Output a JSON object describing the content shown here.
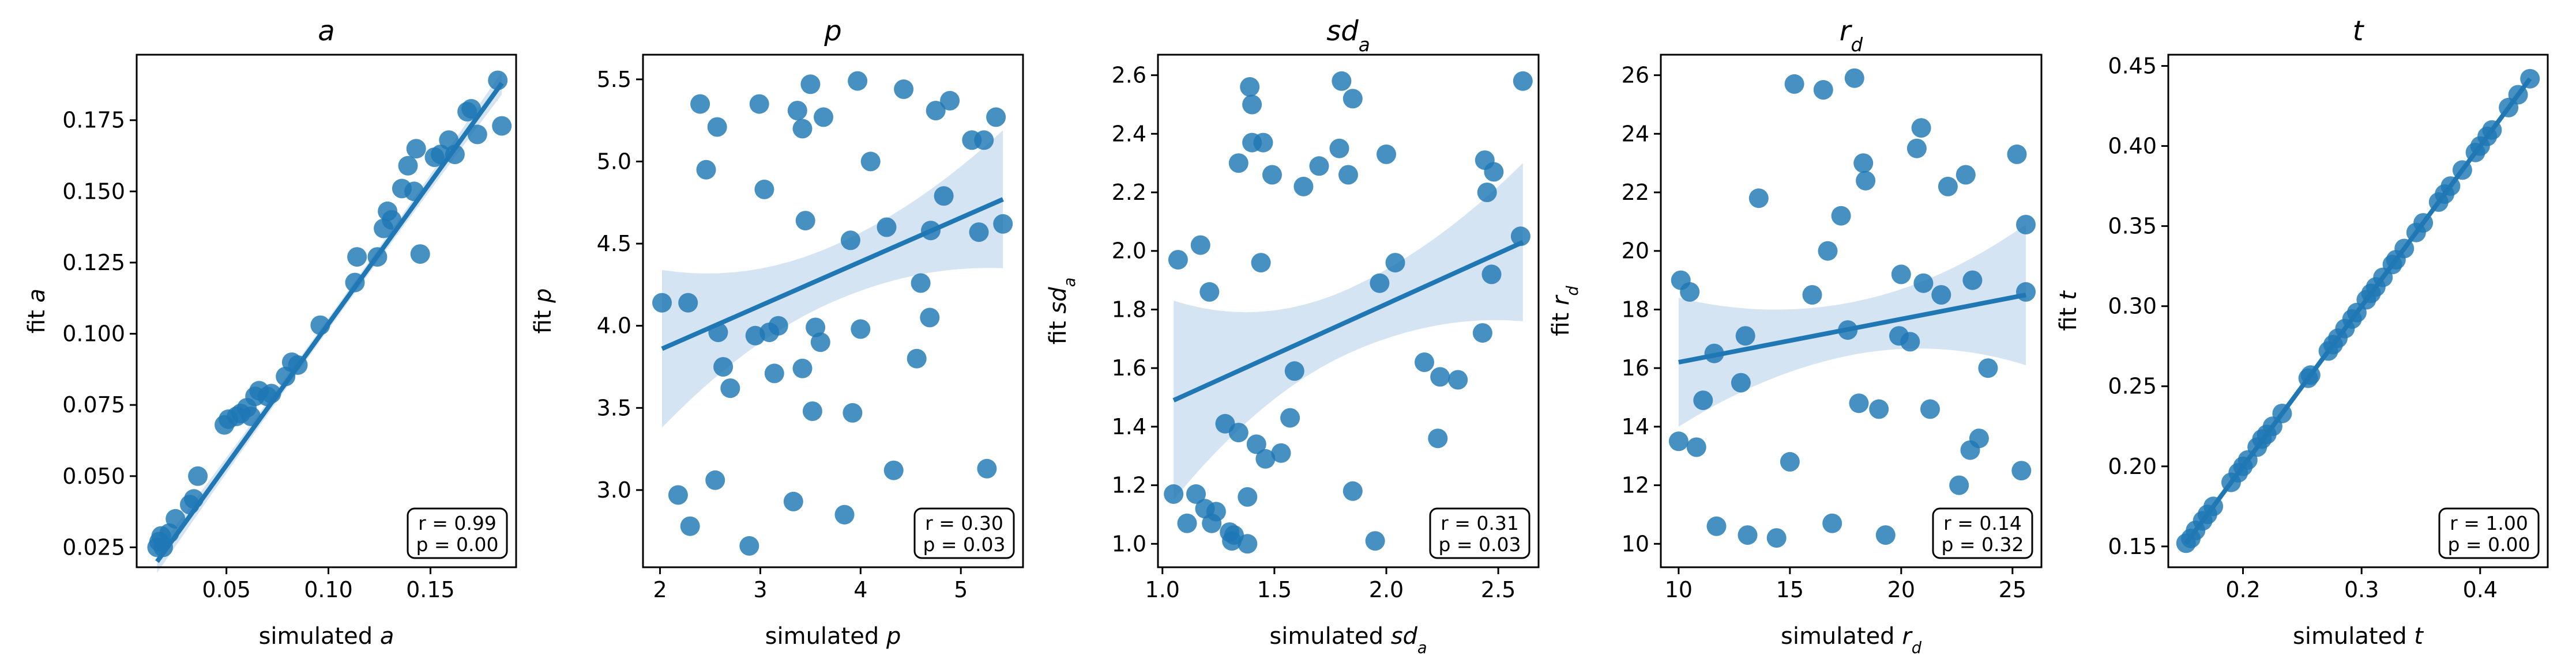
{
  "colors": {
    "point": "#1f77b4",
    "band": "#c6dbef",
    "line": "#1f77b4",
    "axis": "#000000"
  },
  "chart_data": [
    {
      "type": "scatter",
      "title": "a",
      "title_sub": "",
      "xlabel": "simulated ",
      "xlabel_sym": "a",
      "xlabel_sub": "",
      "ylabel": "fit ",
      "ylabel_sym": "a",
      "ylabel_sub": "",
      "xlim": [
        0.006,
        0.192
      ],
      "ylim": [
        0.018,
        0.198
      ],
      "xticks": [
        0.05,
        0.1,
        0.15
      ],
      "xtick_labels": [
        "0.05",
        "0.10",
        "0.15"
      ],
      "yticks": [
        0.025,
        0.05,
        0.075,
        0.1,
        0.125,
        0.15,
        0.175
      ],
      "ytick_labels": [
        "0.025",
        "0.050",
        "0.075",
        "0.100",
        "0.125",
        "0.150",
        "0.175"
      ],
      "points": [
        [
          0.016,
          0.025
        ],
        [
          0.017,
          0.027
        ],
        [
          0.018,
          0.029
        ],
        [
          0.019,
          0.025
        ],
        [
          0.022,
          0.03
        ],
        [
          0.025,
          0.035
        ],
        [
          0.032,
          0.04
        ],
        [
          0.034,
          0.042
        ],
        [
          0.036,
          0.05
        ],
        [
          0.049,
          0.068
        ],
        [
          0.051,
          0.07
        ],
        [
          0.055,
          0.071
        ],
        [
          0.057,
          0.072
        ],
        [
          0.06,
          0.074
        ],
        [
          0.062,
          0.071
        ],
        [
          0.064,
          0.078
        ],
        [
          0.066,
          0.08
        ],
        [
          0.07,
          0.078
        ],
        [
          0.072,
          0.079
        ],
        [
          0.079,
          0.085
        ],
        [
          0.082,
          0.09
        ],
        [
          0.085,
          0.089
        ],
        [
          0.096,
          0.103
        ],
        [
          0.113,
          0.118
        ],
        [
          0.114,
          0.127
        ],
        [
          0.124,
          0.127
        ],
        [
          0.127,
          0.137
        ],
        [
          0.129,
          0.143
        ],
        [
          0.131,
          0.14
        ],
        [
          0.136,
          0.151
        ],
        [
          0.139,
          0.159
        ],
        [
          0.142,
          0.15
        ],
        [
          0.143,
          0.165
        ],
        [
          0.145,
          0.128
        ],
        [
          0.152,
          0.162
        ],
        [
          0.155,
          0.163
        ],
        [
          0.159,
          0.168
        ],
        [
          0.162,
          0.163
        ],
        [
          0.168,
          0.178
        ],
        [
          0.17,
          0.179
        ],
        [
          0.173,
          0.17
        ],
        [
          0.183,
          0.189
        ],
        [
          0.185,
          0.173
        ]
      ],
      "fit": {
        "x": [
          0.016,
          0.185
        ],
        "y": [
          0.02,
          0.188
        ]
      },
      "band_halfwidth": {
        "left": 0.004,
        "mid": 0.002,
        "right": 0.004
      },
      "stats": {
        "r": "r = 0.99",
        "p": "p = 0.00"
      }
    },
    {
      "type": "scatter",
      "title": "p",
      "title_sub": "",
      "xlabel": "simulated ",
      "xlabel_sym": "p",
      "xlabel_sub": "",
      "ylabel": "fit ",
      "ylabel_sym": "p",
      "ylabel_sub": "",
      "xlim": [
        1.83,
        5.62
      ],
      "ylim": [
        2.53,
        5.65
      ],
      "xticks": [
        2,
        3,
        4,
        5
      ],
      "xtick_labels": [
        "2",
        "3",
        "4",
        "5"
      ],
      "yticks": [
        3.0,
        3.5,
        4.0,
        4.5,
        5.0,
        5.5
      ],
      "ytick_labels": [
        "3.0",
        "3.5",
        "4.0",
        "4.5",
        "5.0",
        "5.5"
      ],
      "points": [
        [
          2.02,
          4.14
        ],
        [
          2.18,
          2.97
        ],
        [
          2.28,
          4.14
        ],
        [
          2.3,
          2.78
        ],
        [
          2.4,
          5.35
        ],
        [
          2.46,
          4.95
        ],
        [
          2.55,
          3.06
        ],
        [
          2.57,
          5.21
        ],
        [
          2.58,
          3.96
        ],
        [
          2.63,
          3.75
        ],
        [
          2.7,
          3.62
        ],
        [
          2.89,
          2.66
        ],
        [
          2.95,
          3.94
        ],
        [
          2.99,
          5.35
        ],
        [
          3.04,
          4.83
        ],
        [
          3.09,
          3.96
        ],
        [
          3.14,
          3.71
        ],
        [
          3.18,
          4.0
        ],
        [
          3.33,
          2.93
        ],
        [
          3.37,
          5.31
        ],
        [
          3.42,
          3.74
        ],
        [
          3.42,
          5.2
        ],
        [
          3.45,
          4.64
        ],
        [
          3.5,
          5.47
        ],
        [
          3.52,
          3.48
        ],
        [
          3.55,
          3.99
        ],
        [
          3.6,
          3.9
        ],
        [
          3.63,
          5.27
        ],
        [
          3.84,
          2.85
        ],
        [
          3.9,
          4.52
        ],
        [
          3.92,
          3.47
        ],
        [
          3.97,
          5.49
        ],
        [
          4.0,
          3.98
        ],
        [
          4.1,
          5.0
        ],
        [
          4.26,
          4.6
        ],
        [
          4.33,
          3.12
        ],
        [
          4.43,
          5.44
        ],
        [
          4.56,
          3.8
        ],
        [
          4.6,
          4.26
        ],
        [
          4.69,
          4.05
        ],
        [
          4.7,
          4.58
        ],
        [
          4.75,
          5.31
        ],
        [
          4.83,
          4.79
        ],
        [
          4.89,
          5.37
        ],
        [
          5.11,
          5.13
        ],
        [
          5.18,
          4.57
        ],
        [
          5.23,
          5.13
        ],
        [
          5.26,
          3.13
        ],
        [
          5.35,
          5.27
        ],
        [
          5.42,
          4.62
        ]
      ],
      "fit": {
        "x": [
          2.02,
          5.42
        ],
        "y": [
          3.86,
          4.77
        ]
      },
      "band_halfwidth": {
        "left": 0.48,
        "mid": 0.17,
        "right": 0.42
      },
      "stats": {
        "r": "r = 0.30",
        "p": "p = 0.03"
      }
    },
    {
      "type": "scatter",
      "title": "sd",
      "title_sub": "a",
      "xlabel": "simulated ",
      "xlabel_sym": "sd",
      "xlabel_sub": "a",
      "ylabel": "fit ",
      "ylabel_sym": "sd",
      "ylabel_sub": "a",
      "xlim": [
        0.98,
        2.68
      ],
      "ylim": [
        0.92,
        2.67
      ],
      "xticks": [
        1.0,
        1.5,
        2.0,
        2.5
      ],
      "xtick_labels": [
        "1.0",
        "1.5",
        "2.0",
        "2.5"
      ],
      "yticks": [
        1.0,
        1.2,
        1.4,
        1.6,
        1.8,
        2.0,
        2.2,
        2.4,
        2.6
      ],
      "ytick_labels": [
        "1.0",
        "1.2",
        "1.4",
        "1.6",
        "1.8",
        "2.0",
        "2.2",
        "2.4",
        "2.6"
      ],
      "points": [
        [
          1.05,
          1.17
        ],
        [
          1.07,
          1.97
        ],
        [
          1.11,
          1.07
        ],
        [
          1.15,
          1.17
        ],
        [
          1.17,
          2.02
        ],
        [
          1.19,
          1.12
        ],
        [
          1.21,
          1.86
        ],
        [
          1.22,
          1.07
        ],
        [
          1.24,
          1.11
        ],
        [
          1.28,
          1.41
        ],
        [
          1.3,
          1.04
        ],
        [
          1.31,
          1.01
        ],
        [
          1.32,
          1.03
        ],
        [
          1.34,
          1.38
        ],
        [
          1.34,
          2.3
        ],
        [
          1.38,
          1.16
        ],
        [
          1.38,
          1.0
        ],
        [
          1.39,
          2.56
        ],
        [
          1.4,
          2.5
        ],
        [
          1.4,
          2.37
        ],
        [
          1.42,
          1.34
        ],
        [
          1.44,
          1.96
        ],
        [
          1.45,
          2.37
        ],
        [
          1.46,
          1.29
        ],
        [
          1.49,
          2.26
        ],
        [
          1.53,
          1.31
        ],
        [
          1.57,
          1.43
        ],
        [
          1.59,
          1.59
        ],
        [
          1.63,
          2.22
        ],
        [
          1.7,
          2.29
        ],
        [
          1.79,
          2.35
        ],
        [
          1.8,
          2.58
        ],
        [
          1.83,
          2.26
        ],
        [
          1.85,
          2.52
        ],
        [
          1.85,
          1.18
        ],
        [
          1.95,
          1.01
        ],
        [
          1.97,
          1.89
        ],
        [
          2.0,
          2.33
        ],
        [
          2.04,
          1.96
        ],
        [
          2.17,
          1.62
        ],
        [
          2.23,
          1.36
        ],
        [
          2.24,
          1.57
        ],
        [
          2.32,
          1.56
        ],
        [
          2.43,
          1.72
        ],
        [
          2.44,
          2.31
        ],
        [
          2.45,
          2.2
        ],
        [
          2.47,
          1.92
        ],
        [
          2.48,
          2.27
        ],
        [
          2.59,
          1.05
        ],
        [
          2.6,
          2.05
        ],
        [
          2.61,
          2.58
        ]
      ],
      "fit": {
        "x": [
          1.05,
          2.61
        ],
        "y": [
          1.49,
          2.03
        ]
      },
      "band_halfwidth": {
        "left": 0.34,
        "mid": 0.11,
        "right": 0.27
      },
      "stats": {
        "r": "r = 0.31",
        "p": "p = 0.03"
      }
    },
    {
      "type": "scatter",
      "title": "r",
      "title_sub": "d",
      "xlabel": "simulated ",
      "xlabel_sym": "r",
      "xlabel_sub": "d",
      "ylabel": "fit ",
      "ylabel_sym": "r",
      "ylabel_sub": "d",
      "xlim": [
        9.2,
        26.3
      ],
      "ylim": [
        9.2,
        26.7
      ],
      "xticks": [
        10,
        15,
        20,
        25
      ],
      "xtick_labels": [
        "10",
        "15",
        "20",
        "25"
      ],
      "yticks": [
        10,
        12,
        14,
        16,
        18,
        20,
        22,
        24,
        26
      ],
      "ytick_labels": [
        "10",
        "12",
        "14",
        "16",
        "18",
        "20",
        "22",
        "24",
        "26"
      ],
      "points": [
        [
          10.0,
          13.5
        ],
        [
          10.1,
          19.0
        ],
        [
          10.5,
          18.6
        ],
        [
          10.8,
          13.3
        ],
        [
          11.1,
          14.9
        ],
        [
          11.6,
          16.5
        ],
        [
          11.7,
          10.6
        ],
        [
          12.8,
          15.5
        ],
        [
          13.0,
          17.1
        ],
        [
          13.1,
          10.3
        ],
        [
          13.6,
          21.8
        ],
        [
          14.4,
          10.2
        ],
        [
          15.0,
          12.8
        ],
        [
          15.2,
          25.7
        ],
        [
          16.0,
          18.5
        ],
        [
          16.5,
          25.5
        ],
        [
          16.7,
          20.0
        ],
        [
          16.9,
          10.7
        ],
        [
          17.3,
          21.2
        ],
        [
          17.6,
          17.3
        ],
        [
          17.9,
          25.9
        ],
        [
          18.1,
          14.8
        ],
        [
          18.3,
          23.0
        ],
        [
          18.4,
          22.4
        ],
        [
          19.0,
          14.6
        ],
        [
          19.3,
          10.3
        ],
        [
          19.9,
          17.1
        ],
        [
          20.0,
          19.2
        ],
        [
          20.4,
          16.9
        ],
        [
          20.7,
          23.5
        ],
        [
          20.9,
          24.2
        ],
        [
          21.0,
          18.9
        ],
        [
          21.3,
          14.6
        ],
        [
          21.8,
          18.5
        ],
        [
          22.1,
          22.2
        ],
        [
          22.9,
          22.6
        ],
        [
          22.6,
          12.0
        ],
        [
          23.1,
          13.2
        ],
        [
          23.2,
          19.0
        ],
        [
          23.5,
          13.6
        ],
        [
          23.9,
          16.0
        ],
        [
          24.1,
          10.5
        ],
        [
          25.2,
          23.3
        ],
        [
          25.4,
          12.5
        ],
        [
          25.6,
          18.6
        ],
        [
          25.6,
          20.9
        ]
      ],
      "fit": {
        "x": [
          10.0,
          25.6
        ],
        "y": [
          16.2,
          18.5
        ]
      },
      "band_halfwidth": {
        "left": 2.2,
        "mid": 0.9,
        "right": 2.4
      },
      "stats": {
        "r": "r = 0.14",
        "p": "p = 0.32"
      }
    },
    {
      "type": "scatter",
      "title": "t",
      "title_sub": "",
      "xlabel": "simulated ",
      "xlabel_sym": "t",
      "xlabel_sub": "",
      "ylabel": "fit ",
      "ylabel_sym": "t",
      "ylabel_sub": "",
      "xlim": [
        0.137,
        0.457
      ],
      "ylim": [
        0.137,
        0.457
      ],
      "xticks": [
        0.2,
        0.3,
        0.4
      ],
      "xtick_labels": [
        "0.2",
        "0.3",
        "0.4"
      ],
      "yticks": [
        0.15,
        0.2,
        0.25,
        0.3,
        0.35,
        0.4,
        0.45
      ],
      "ytick_labels": [
        "0.15",
        "0.20",
        "0.25",
        "0.30",
        "0.35",
        "0.40",
        "0.45"
      ],
      "points": [
        [
          0.152,
          0.152
        ],
        [
          0.156,
          0.155
        ],
        [
          0.16,
          0.16
        ],
        [
          0.166,
          0.166
        ],
        [
          0.17,
          0.17
        ],
        [
          0.175,
          0.175
        ],
        [
          0.19,
          0.19
        ],
        [
          0.196,
          0.196
        ],
        [
          0.2,
          0.2
        ],
        [
          0.204,
          0.204
        ],
        [
          0.212,
          0.212
        ],
        [
          0.216,
          0.217
        ],
        [
          0.22,
          0.22
        ],
        [
          0.225,
          0.225
        ],
        [
          0.233,
          0.233
        ],
        [
          0.255,
          0.255
        ],
        [
          0.257,
          0.257
        ],
        [
          0.272,
          0.272
        ],
        [
          0.276,
          0.276
        ],
        [
          0.28,
          0.28
        ],
        [
          0.286,
          0.286
        ],
        [
          0.292,
          0.292
        ],
        [
          0.296,
          0.296
        ],
        [
          0.304,
          0.304
        ],
        [
          0.308,
          0.308
        ],
        [
          0.312,
          0.312
        ],
        [
          0.318,
          0.318
        ],
        [
          0.326,
          0.326
        ],
        [
          0.329,
          0.329
        ],
        [
          0.336,
          0.336
        ],
        [
          0.346,
          0.346
        ],
        [
          0.352,
          0.352
        ],
        [
          0.365,
          0.365
        ],
        [
          0.37,
          0.37
        ],
        [
          0.375,
          0.375
        ],
        [
          0.385,
          0.385
        ],
        [
          0.396,
          0.396
        ],
        [
          0.4,
          0.4
        ],
        [
          0.406,
          0.406
        ],
        [
          0.41,
          0.41
        ],
        [
          0.424,
          0.424
        ],
        [
          0.432,
          0.432
        ],
        [
          0.442,
          0.442
        ]
      ],
      "fit": {
        "x": [
          0.152,
          0.442
        ],
        "y": [
          0.152,
          0.442
        ]
      },
      "band_halfwidth": {
        "left": 0.001,
        "mid": 0.001,
        "right": 0.001
      },
      "stats": {
        "r": "r = 1.00",
        "p": "p = 0.00"
      }
    }
  ]
}
